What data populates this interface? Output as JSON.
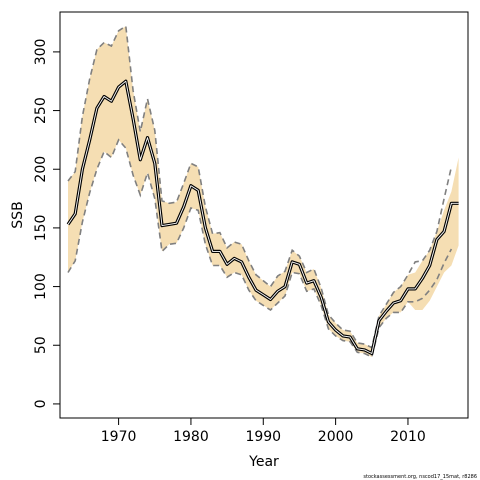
{
  "chart_data": {
    "type": "line",
    "xlabel": "Year",
    "ylabel": "SSB",
    "xlim": [
      1961.9,
      2018.3
    ],
    "ylim": [
      -12,
      334
    ],
    "x_ticks": [
      1970,
      1980,
      1990,
      2000,
      2010
    ],
    "y_ticks": [
      0,
      50,
      100,
      150,
      200,
      250,
      300
    ],
    "footnote": "stockassessment.org, nscod17_15mat, r8286",
    "band_color": "#f5deb3",
    "series": [
      {
        "role": "estimate",
        "style": "black double line",
        "x": [
          1963,
          1964,
          1965,
          1966,
          1967,
          1968,
          1969,
          1970,
          1971,
          1972,
          1973,
          1974,
          1975,
          1976,
          1977,
          1978,
          1979,
          1980,
          1981,
          1982,
          1983,
          1984,
          1985,
          1986,
          1987,
          1988,
          1989,
          1990,
          1991,
          1992,
          1993,
          1994,
          1995,
          1996,
          1997,
          1998,
          1999,
          2000,
          2001,
          2002,
          2003,
          2004,
          2005,
          2006,
          2007,
          2008,
          2009,
          2010,
          2011,
          2012,
          2013,
          2014,
          2015,
          2016,
          2017
        ],
        "y": [
          153,
          162,
          200,
          225,
          252,
          262,
          258,
          270,
          275,
          243,
          208,
          227,
          205,
          152,
          153,
          154,
          168,
          186,
          182,
          150,
          130,
          130,
          119,
          124,
          121,
          108,
          97,
          93,
          89,
          96,
          100,
          121,
          119,
          103,
          105,
          91,
          70,
          63,
          58,
          57,
          47,
          46,
          43,
          71,
          79,
          86,
          88,
          98,
          98,
          107,
          118,
          140,
          147,
          171,
          171
        ]
      },
      {
        "role": "upper dashed",
        "x": [
          1963,
          1964,
          1965,
          1966,
          1967,
          1968,
          1969,
          1970,
          1971,
          1972,
          1973,
          1974,
          1975,
          1976,
          1977,
          1978,
          1979,
          1980,
          1981,
          1982,
          1983,
          1984,
          1985,
          1986,
          1987,
          1988,
          1989,
          1990,
          1991,
          1992,
          1993,
          1994,
          1995,
          1996,
          1997,
          1998,
          1999,
          2000,
          2001,
          2002,
          2003,
          2004,
          2005,
          2006,
          2007,
          2008,
          2009,
          2010,
          2011,
          2012,
          2013,
          2014,
          2015,
          2016
        ],
        "y": [
          190,
          198,
          245,
          277,
          302,
          308,
          305,
          318,
          322,
          267,
          232,
          260,
          233,
          173,
          171,
          172,
          188,
          205,
          202,
          168,
          145,
          146,
          133,
          138,
          136,
          122,
          110,
          105,
          100,
          109,
          113,
          131,
          126,
          112,
          115,
          99,
          76,
          69,
          63,
          62,
          52,
          51,
          48,
          75,
          85,
          95,
          100,
          110,
          121,
          122,
          131,
          147,
          175,
          202
        ]
      },
      {
        "role": "lower dashed",
        "x": [
          1963,
          1964,
          1965,
          1966,
          1967,
          1968,
          1969,
          1970,
          1971,
          1972,
          1973,
          1974,
          1975,
          1976,
          1977,
          1978,
          1979,
          1980,
          1981,
          1982,
          1983,
          1984,
          1985,
          1986,
          1987,
          1988,
          1989,
          1990,
          1991,
          1992,
          1993,
          1994,
          1995,
          1996,
          1997,
          1998,
          1999,
          2000,
          2001,
          2002,
          2003,
          2004,
          2005,
          2006,
          2007,
          2008,
          2009,
          2010,
          2011,
          2012,
          2013,
          2014,
          2015,
          2016
        ],
        "y": [
          112,
          122,
          155,
          180,
          200,
          215,
          210,
          225,
          218,
          195,
          178,
          197,
          175,
          130,
          136,
          137,
          150,
          167,
          165,
          136,
          118,
          118,
          108,
          112,
          110,
          97,
          88,
          84,
          80,
          86,
          92,
          112,
          111,
          96,
          98,
          84,
          64,
          58,
          54,
          53,
          44,
          43,
          40,
          65,
          73,
          78,
          78,
          87,
          87,
          90,
          97,
          106,
          120,
          132
        ]
      },
      {
        "role": "band upper",
        "x": [
          1963,
          1964,
          1965,
          1966,
          1967,
          1968,
          1969,
          1970,
          1971,
          1972,
          1973,
          1974,
          1975,
          1976,
          1977,
          1978,
          1979,
          1980,
          1981,
          1982,
          1983,
          1984,
          1985,
          1986,
          1987,
          1988,
          1989,
          1990,
          1991,
          1992,
          1993,
          1994,
          1995,
          1996,
          1997,
          1998,
          1999,
          2000,
          2001,
          2002,
          2003,
          2004,
          2005,
          2006,
          2007,
          2008,
          2009,
          2010,
          2011,
          2012,
          2013,
          2014,
          2015,
          2016,
          2017
        ],
        "y": [
          190,
          198,
          245,
          277,
          302,
          308,
          305,
          318,
          322,
          267,
          232,
          260,
          233,
          173,
          171,
          172,
          188,
          205,
          202,
          168,
          145,
          146,
          133,
          138,
          136,
          122,
          110,
          105,
          100,
          109,
          113,
          131,
          126,
          112,
          115,
          99,
          76,
          69,
          63,
          62,
          52,
          51,
          48,
          75,
          85,
          95,
          100,
          110,
          112,
          122,
          131,
          147,
          165,
          181,
          210
        ]
      },
      {
        "role": "band lower",
        "x": [
          1963,
          1964,
          1965,
          1966,
          1967,
          1968,
          1969,
          1970,
          1971,
          1972,
          1973,
          1974,
          1975,
          1976,
          1977,
          1978,
          1979,
          1980,
          1981,
          1982,
          1983,
          1984,
          1985,
          1986,
          1987,
          1988,
          1989,
          1990,
          1991,
          1992,
          1993,
          1994,
          1995,
          1996,
          1997,
          1998,
          1999,
          2000,
          2001,
          2002,
          2003,
          2004,
          2005,
          2006,
          2007,
          2008,
          2009,
          2010,
          2011,
          2012,
          2013,
          2014,
          2015,
          2016,
          2017
        ],
        "y": [
          112,
          122,
          155,
          180,
          200,
          215,
          210,
          225,
          218,
          195,
          178,
          197,
          175,
          130,
          136,
          137,
          150,
          167,
          165,
          136,
          118,
          118,
          108,
          112,
          110,
          97,
          88,
          84,
          80,
          86,
          92,
          112,
          111,
          96,
          98,
          84,
          64,
          58,
          54,
          53,
          44,
          43,
          40,
          65,
          73,
          78,
          78,
          87,
          80,
          80,
          88,
          100,
          112,
          118,
          135
        ]
      }
    ]
  }
}
